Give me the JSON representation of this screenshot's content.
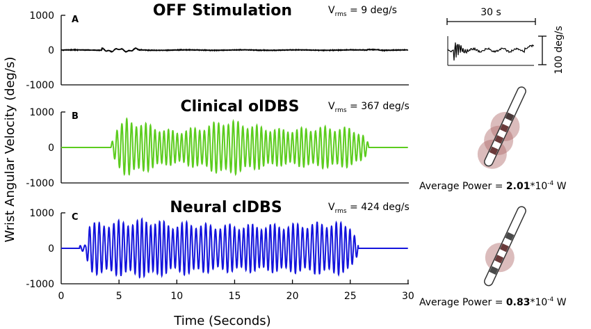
{
  "chart_data": {
    "type": "line",
    "shared": {
      "xlabel": "Time (Seconds)",
      "ylabel": "Wrist Angular Velocity (deg/s)",
      "xlim": [
        0,
        30
      ],
      "xticks": [
        "0",
        "5",
        "10",
        "15",
        "20",
        "25",
        "30"
      ],
      "ylim": [
        -1000,
        1000
      ],
      "yticks": [
        "1000",
        "0",
        "-1000"
      ],
      "grid": false
    },
    "panels": [
      {
        "letter": "A",
        "title": "OFF Stimulation",
        "vrms_label": "V",
        "vrms_sub": "rms",
        "vrms_value": " = 9 deg/s",
        "color": "#000000",
        "tremor_frequency_hz": 0,
        "onset_s": 4.0,
        "offset_s": 27.0,
        "envelope": [
          [
            0,
            0
          ],
          [
            4,
            0
          ],
          [
            4.5,
            40
          ],
          [
            6,
            30
          ],
          [
            8,
            10
          ],
          [
            27,
            8
          ],
          [
            30,
            0
          ]
        ]
      },
      {
        "letter": "B",
        "title": "Clinical olDBS",
        "vrms_label": "V",
        "vrms_sub": "rms",
        "vrms_value": " = 367 deg/s",
        "color": "#5ccc1e",
        "tremor_frequency_hz": 2.5,
        "onset_s": 4.3,
        "offset_s": 26.6,
        "envelope": [
          [
            4.3,
            100
          ],
          [
            4.8,
            600
          ],
          [
            5.7,
            820
          ],
          [
            7,
            720
          ],
          [
            9,
            520
          ],
          [
            10,
            480
          ],
          [
            12.5,
            620
          ],
          [
            14,
            800
          ],
          [
            15,
            760
          ],
          [
            17,
            620
          ],
          [
            19,
            520
          ],
          [
            21,
            560
          ],
          [
            23,
            600
          ],
          [
            25,
            560
          ],
          [
            26,
            430
          ],
          [
            26.6,
            100
          ]
        ],
        "power_label": "Average Power = ",
        "power_value": "2.01",
        "power_unit": "*10",
        "power_exp": "-4",
        "power_w": " W"
      },
      {
        "letter": "C",
        "title": "Neural clDBS",
        "vrms_label": "V",
        "vrms_sub": "rms",
        "vrms_value": " = 424 deg/s",
        "color": "#1414dc",
        "tremor_frequency_hz": 2.5,
        "onset_s": 2.1,
        "offset_s": 25.7,
        "envelope": [
          [
            1.6,
            80
          ],
          [
            2.1,
            120
          ],
          [
            2.4,
            720
          ],
          [
            4,
            760
          ],
          [
            7,
            830
          ],
          [
            8,
            840
          ],
          [
            9.5,
            700
          ],
          [
            11,
            760
          ],
          [
            13,
            680
          ],
          [
            15,
            680
          ],
          [
            18,
            680
          ],
          [
            20,
            700
          ],
          [
            23.5,
            760
          ],
          [
            25,
            700
          ],
          [
            25.7,
            150
          ]
        ],
        "power_label": "Average Power = ",
        "power_value": "0.83",
        "power_unit": "*10",
        "power_exp": "-4",
        "power_w": " W"
      }
    ],
    "inset": {
      "time_scale": "30 s",
      "amp_scale": "100 deg/s"
    }
  }
}
